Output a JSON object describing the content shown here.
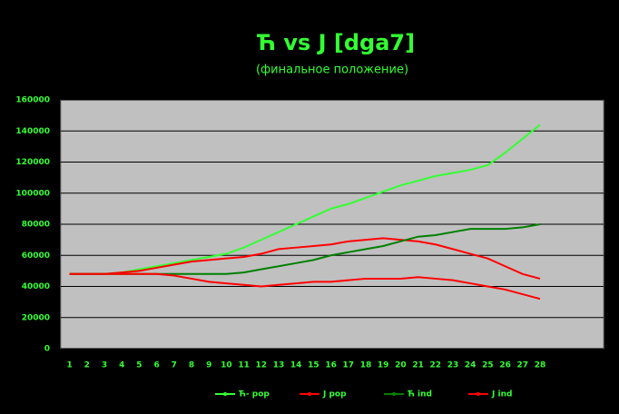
{
  "chart_data": {
    "type": "line",
    "title": "Ћ vs Ј [dga7]",
    "subtitle": "(финальное положение)",
    "categories": [
      "1",
      "2",
      "3",
      "4",
      "5",
      "6",
      "7",
      "8",
      "9",
      "10",
      "11",
      "12",
      "13",
      "14",
      "15",
      "16",
      "17",
      "18",
      "19",
      "20",
      "21",
      "22",
      "23",
      "24",
      "25",
      "26",
      "27",
      "28"
    ],
    "series": [
      {
        "name": "Ћ- pop",
        "color": "#33ff33",
        "values": [
          48000,
          48000,
          48000,
          49000,
          51000,
          53000,
          55000,
          57000,
          59000,
          61000,
          65000,
          70000,
          75000,
          80000,
          85000,
          90000,
          93000,
          97000,
          101000,
          105000,
          108000,
          111000,
          113000,
          115000,
          118000,
          126000,
          135000,
          144000
        ]
      },
      {
        "name": "Ј pop",
        "color": "#ff0000",
        "values": [
          48000,
          48000,
          48000,
          49000,
          50000,
          52000,
          54000,
          56000,
          57000,
          58000,
          59000,
          61000,
          64000,
          65000,
          66000,
          67000,
          69000,
          70000,
          71000,
          70000,
          69000,
          67000,
          64000,
          61000,
          58000,
          53000,
          48000,
          45000
        ]
      },
      {
        "name": "Ћ ind",
        "color": "#008000",
        "values": [
          48000,
          48000,
          48000,
          48000,
          48000,
          48000,
          48000,
          48000,
          48000,
          48000,
          49000,
          51000,
          53000,
          55000,
          57000,
          60000,
          62000,
          64000,
          66000,
          69000,
          72000,
          73000,
          75000,
          77000,
          77000,
          77000,
          78000,
          80000
        ]
      },
      {
        "name": "Ј ind",
        "color": "#ff0000",
        "values": [
          48000,
          48000,
          48000,
          48000,
          48000,
          48000,
          47000,
          45000,
          43000,
          42000,
          41000,
          40000,
          41000,
          42000,
          43000,
          43000,
          44000,
          45000,
          45000,
          45000,
          46000,
          45000,
          44000,
          42000,
          40000,
          38000,
          35000,
          32000
        ]
      }
    ],
    "ylim": [
      0,
      160000
    ],
    "yticks": [
      0,
      20000,
      40000,
      60000,
      80000,
      100000,
      120000,
      140000,
      160000
    ],
    "grid": true,
    "legend": "bottom"
  }
}
